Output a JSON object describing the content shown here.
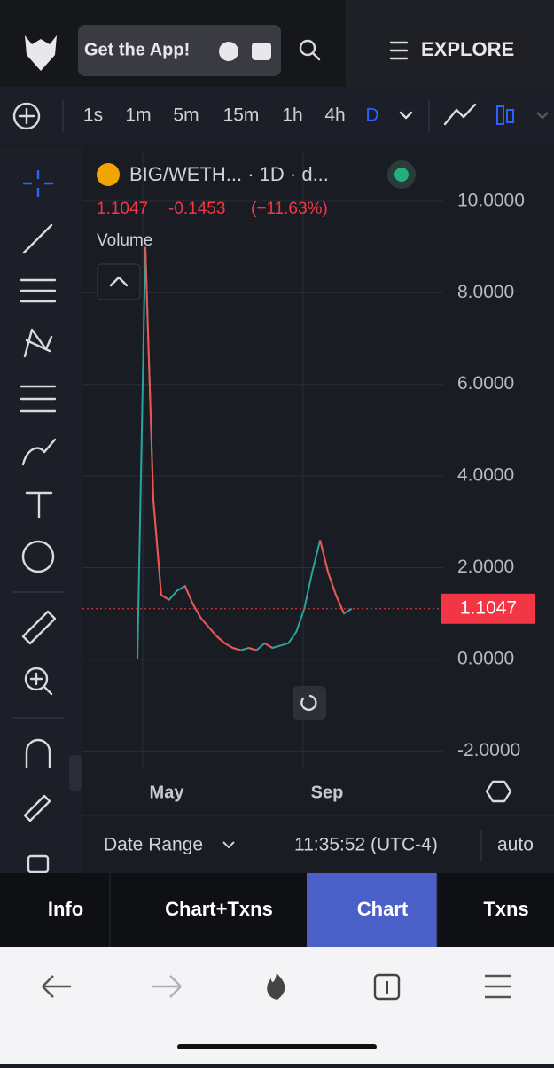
{
  "header": {
    "app_button": "Get the App!",
    "explore": "EXPLORE"
  },
  "toolbar": {
    "intervals": [
      "1s",
      "1m",
      "5m",
      "15m",
      "1h",
      "4h",
      "D"
    ],
    "active": "D"
  },
  "legend": {
    "symbol": "BIG/WETH... · 1D · d...",
    "change": -0.1453,
    "change_pct": "(−11.63%)",
    "volume": "Volume"
  },
  "chart": {
    "type": "line",
    "color": "#26a69a",
    "down_color": "#ef5350",
    "values": [
      0.0,
      9.0,
      3.5,
      1.4,
      1.3,
      1.5,
      1.6,
      1.2,
      0.9,
      0.7,
      0.5,
      0.35,
      0.25,
      0.2,
      0.25,
      0.2,
      0.35,
      0.25,
      0.3,
      0.35,
      0.6,
      1.1,
      1.9,
      2.6,
      1.9,
      1.4,
      1.0,
      1.1047
    ],
    "last_price": 1.1047,
    "ylim": [
      -2.4,
      11.1
    ],
    "yticks": [
      {
        "value": 10,
        "label": "10.0000"
      },
      {
        "value": 8,
        "label": "8.0000"
      },
      {
        "value": 6,
        "label": "6.0000"
      },
      {
        "value": 4,
        "label": "4.0000"
      },
      {
        "value": 2,
        "label": "2.0000"
      },
      {
        "value": 0,
        "label": "0.0000"
      },
      {
        "value": -2,
        "label": "-2.0000"
      }
    ],
    "x_labels": [
      "May",
      "Sep"
    ],
    "grid": true
  },
  "footer": {
    "date_range": "Date Range",
    "time": "11:35:52 (UTC-4)",
    "scale": "auto"
  },
  "tabs": [
    "Info",
    "Chart+Txns",
    "Chart",
    "Txns"
  ],
  "active_tab": "Chart"
}
